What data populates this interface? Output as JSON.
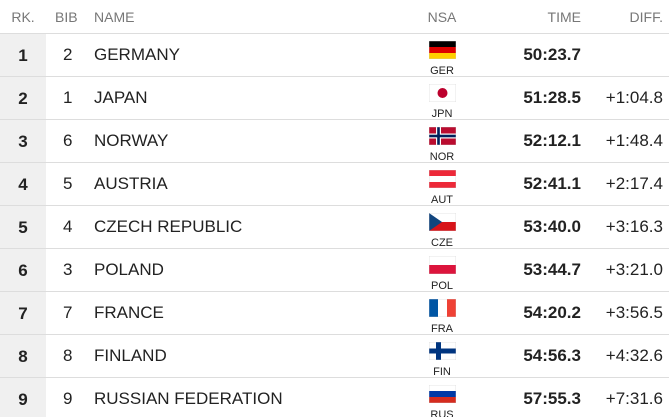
{
  "header": {
    "rank": "RK.",
    "bib": "BIB",
    "name": "NAME",
    "nsa": "NSA",
    "time": "TIME",
    "diff": "DIFF."
  },
  "rows": [
    {
      "rank": 1,
      "bib": 2,
      "name": "GERMANY",
      "nsa": "GER",
      "time": "50:23.7"
    },
    {
      "rank": 2,
      "bib": 1,
      "name": "JAPAN",
      "nsa": "JPN",
      "time": "51:28.5",
      "diff": "+1:04.8"
    },
    {
      "rank": 3,
      "bib": 6,
      "name": "NORWAY",
      "nsa": "NOR",
      "time": "52:12.1",
      "diff": "+1:48.4"
    },
    {
      "rank": 4,
      "bib": 5,
      "name": "AUSTRIA",
      "nsa": "AUT",
      "time": "52:41.1",
      "diff": "+2:17.4"
    },
    {
      "rank": 5,
      "bib": 4,
      "name": "CZECH REPUBLIC",
      "nsa": "CZE",
      "time": "53:40.0",
      "diff": "+3:16.3"
    },
    {
      "rank": 6,
      "bib": 3,
      "name": "POLAND",
      "nsa": "POL",
      "time": "53:44.7",
      "diff": "+3:21.0"
    },
    {
      "rank": 7,
      "bib": 7,
      "name": "FRANCE",
      "nsa": "FRA",
      "time": "54:20.2",
      "diff": "+3:56.5"
    },
    {
      "rank": 8,
      "bib": 8,
      "name": "FINLAND",
      "nsa": "FIN",
      "time": "54:56.3",
      "diff": "+4:32.6"
    },
    {
      "rank": 9,
      "bib": 9,
      "name": "RUSSIAN FEDERATION",
      "nsa": "RUS",
      "time": "57:55.3",
      "diff": "+7:31.6"
    }
  ]
}
